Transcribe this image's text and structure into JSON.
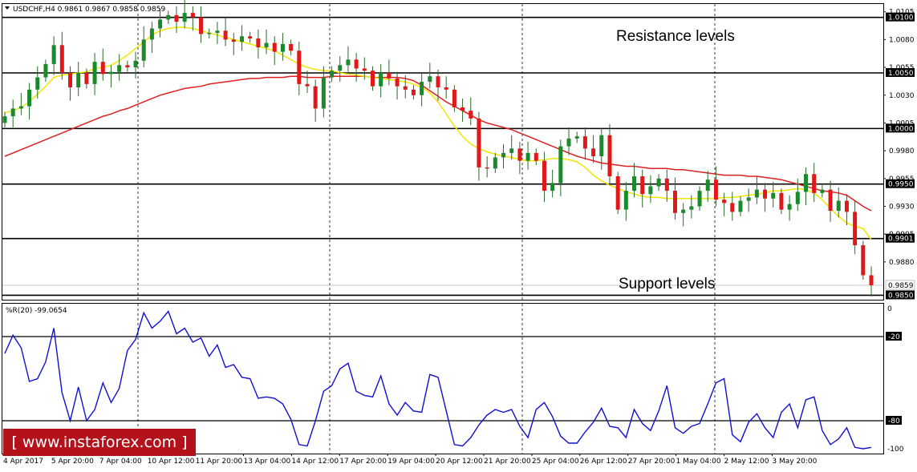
{
  "chart_data": {
    "type": "candlestick",
    "symbol_header": "USDCHF,H4  0.9861 0.9867 0.9858 0.9859",
    "annotations": {
      "resistance": "Resistance levels",
      "support": "Support levels"
    },
    "watermark": "[ www.instaforex.com ]",
    "price_axis": {
      "range": [
        0.9846,
        1.0112
      ],
      "ticks": [
        "1.0105",
        "1.0080",
        "1.0055",
        "1.0030",
        "1.0005",
        "0.9980",
        "0.9955",
        "0.9930",
        "0.9905",
        "0.9880"
      ],
      "tick_values": [
        1.0105,
        1.008,
        1.0055,
        1.003,
        1.0005,
        0.998,
        0.9955,
        0.993,
        0.9905,
        0.988
      ]
    },
    "levels": [
      {
        "value": 1.01,
        "label": "1.0100"
      },
      {
        "value": 1.005,
        "label": "1.0050"
      },
      {
        "value": 1.0,
        "label": "1.0000"
      },
      {
        "value": 0.995,
        "label": "0.9950"
      },
      {
        "value": 0.9901,
        "label": "0.9901"
      },
      {
        "value": 0.985,
        "label": "0.9850"
      }
    ],
    "current_price": {
      "value": 0.9859,
      "label": "0.9859"
    },
    "x_labels": [
      "4 Apr 2017",
      "5 Apr 20:00",
      "7 Apr 04:00",
      "10 Apr 12:00",
      "11 Apr 20:00",
      "13 Apr 04:00",
      "14 Apr 12:00",
      "17 Apr 20:00",
      "19 Apr 04:00",
      "20 Apr 12:00",
      "21 Apr 20:00",
      "25 Apr 04:00",
      "26 Apr 12:00",
      "27 Apr 20:00",
      "1 May 04:00",
      "2 May 12:00",
      "3 May 20:00"
    ],
    "candles": {
      "count": 107,
      "closes": [
        1.0011,
        1.0018,
        1.002,
        1.0035,
        1.0046,
        1.0058,
        1.0075,
        1.005,
        1.0037,
        1.005,
        1.004,
        1.006,
        1.0049,
        1.0051,
        1.0057,
        1.0055,
        1.0061,
        1.008,
        1.009,
        1.0098,
        1.0102,
        1.0096,
        1.0104,
        1.01,
        1.0085,
        1.0086,
        1.0088,
        1.008,
        1.0078,
        1.0083,
        1.0081,
        1.0073,
        1.0077,
        1.0069,
        1.0076,
        1.007,
        1.004,
        1.0038,
        1.0018,
        1.0046,
        1.0052,
        1.0057,
        1.0062,
        1.0054,
        1.0052,
        1.0038,
        1.005,
        1.0045,
        1.0038,
        1.0035,
        1.003,
        1.0042,
        1.0047,
        1.0037,
        1.0035,
        1.0019,
        1.0016,
        1.0009,
        0.9965,
        0.9964,
        0.9974,
        0.9978,
        0.9982,
        0.9971,
        0.9978,
        0.9971,
        0.9944,
        0.9951,
        0.9984,
        0.9991,
        0.9993,
        0.9982,
        0.9975,
        0.9994,
        0.9957,
        0.9927,
        0.9944,
        0.9957,
        0.9941,
        0.9948,
        0.9955,
        0.9944,
        0.9924,
        0.9927,
        0.993,
        0.9944,
        0.9954,
        0.9936,
        0.9933,
        0.9925,
        0.9935,
        0.9938,
        0.9945,
        0.9937,
        0.9942,
        0.9927,
        0.9932,
        0.9943,
        0.9959,
        0.9942,
        0.9945,
        0.9926,
        0.9935,
        0.9925,
        0.9895,
        0.9868,
        0.9859
      ],
      "ma_fast": [
        1.0014,
        1.0016,
        1.0019,
        1.0024,
        1.0031,
        1.0038,
        1.0046,
        1.0048,
        1.0049,
        1.005,
        1.0051,
        1.0054,
        1.0055,
        1.0057,
        1.0061,
        1.0066,
        1.0072,
        1.0078,
        1.0084,
        1.0088,
        1.009,
        1.0091,
        1.0091,
        1.009,
        1.0088,
        1.0086,
        1.0084,
        1.0082,
        1.008,
        1.0078,
        1.0076,
        1.0074,
        1.0072,
        1.007,
        1.0066,
        1.0062,
        1.0058,
        1.0055,
        1.0053,
        1.0052,
        1.0052,
        1.005,
        1.0049,
        1.0048,
        1.0047,
        1.0046,
        1.0045,
        1.0044,
        1.0043,
        1.0042,
        1.004,
        1.0037,
        1.0032,
        1.0024,
        1.0013,
        1.0002,
        0.9993,
        0.9986,
        0.9982,
        0.9979,
        0.9977,
        0.9975,
        0.9974,
        0.9972,
        0.9971,
        0.9971,
        0.9972,
        0.9973,
        0.9973,
        0.9972,
        0.997,
        0.9965,
        0.9958,
        0.9953,
        0.9949,
        0.9946,
        0.9943,
        0.9941,
        0.9939,
        0.9938,
        0.9938,
        0.9937,
        0.9937,
        0.9937,
        0.9937,
        0.9937,
        0.9937,
        0.9937,
        0.9938,
        0.9938,
        0.9939,
        0.994,
        0.9941,
        0.9942,
        0.9944,
        0.9944,
        0.9945,
        0.9946,
        0.9945,
        0.9942,
        0.9936,
        0.9928,
        0.9921,
        0.9915,
        0.9912,
        0.991,
        0.99
      ],
      "ma_slow": [
        0.9975,
        0.9978,
        0.9981,
        0.9984,
        0.9987,
        0.999,
        0.9993,
        0.9996,
        0.9999,
        1.0002,
        1.0005,
        1.0008,
        1.0011,
        1.0013,
        1.0016,
        1.0018,
        1.0021,
        1.0024,
        1.0027,
        1.003,
        1.0032,
        1.0034,
        1.0036,
        1.0037,
        1.0038,
        1.004,
        1.0041,
        1.0042,
        1.0043,
        1.0044,
        1.0045,
        1.0045,
        1.0046,
        1.0046,
        1.0046,
        1.0047,
        1.0047,
        1.0046,
        1.0046,
        1.0046,
        1.0047,
        1.0047,
        1.0047,
        1.0047,
        1.0047,
        1.0046,
        1.0046,
        1.0046,
        1.0046,
        1.0045,
        1.0043,
        1.0039,
        1.0034,
        1.0029,
        1.0024,
        1.002,
        1.0016,
        1.0012,
        1.0008,
        1.0005,
        1.0003,
        1.0001,
        0.9999,
        0.9996,
        0.9993,
        0.999,
        0.9987,
        0.9984,
        0.9981,
        0.9978,
        0.9975,
        0.9973,
        0.9971,
        0.9969,
        0.9968,
        0.9967,
        0.9966,
        0.9966,
        0.9965,
        0.9964,
        0.9964,
        0.9964,
        0.9963,
        0.9963,
        0.9962,
        0.9961,
        0.996,
        0.9959,
        0.9958,
        0.9958,
        0.9958,
        0.9957,
        0.9957,
        0.9956,
        0.9955,
        0.9954,
        0.9952,
        0.995,
        0.9948,
        0.9946,
        0.9944,
        0.9943,
        0.9942,
        0.994,
        0.9935,
        0.993,
        0.9926
      ]
    },
    "indicator": {
      "header": "%R(20) -99.0654",
      "range": [
        -100,
        0
      ],
      "ticks": [
        "0",
        "-20",
        "-80",
        "-100"
      ],
      "tick_values": [
        0,
        -20,
        -80,
        -100
      ],
      "levels": [
        -20,
        -80
      ],
      "values": [
        -32,
        -19,
        -28,
        -52,
        -50,
        -38,
        -14,
        -60,
        -80,
        -56,
        -80,
        -72,
        -53,
        -67,
        -57,
        -30,
        -22,
        -3,
        -14,
        -9,
        -2,
        -18,
        -14,
        -24,
        -21,
        -34,
        -26,
        -42,
        -40,
        -49,
        -50,
        -64,
        -63,
        -64,
        -68,
        -79,
        -97,
        -98,
        -80,
        -59,
        -55,
        -43,
        -39,
        -59,
        -62,
        -63,
        -48,
        -68,
        -76,
        -67,
        -73,
        -74,
        -47,
        -49,
        -73,
        -97,
        -98,
        -92,
        -83,
        -76,
        -72,
        -74,
        -72,
        -84,
        -92,
        -72,
        -67,
        -77,
        -91,
        -96,
        -96,
        -88,
        -81,
        -71,
        -84,
        -85,
        -92,
        -72,
        -82,
        -87,
        -73,
        -55,
        -85,
        -89,
        -84,
        -82,
        -68,
        -53,
        -50,
        -90,
        -95,
        -81,
        -75,
        -85,
        -92,
        -74,
        -68,
        -85,
        -65,
        -63,
        -87,
        -97,
        -93,
        -85,
        -99,
        -100,
        -99
      ]
    }
  }
}
